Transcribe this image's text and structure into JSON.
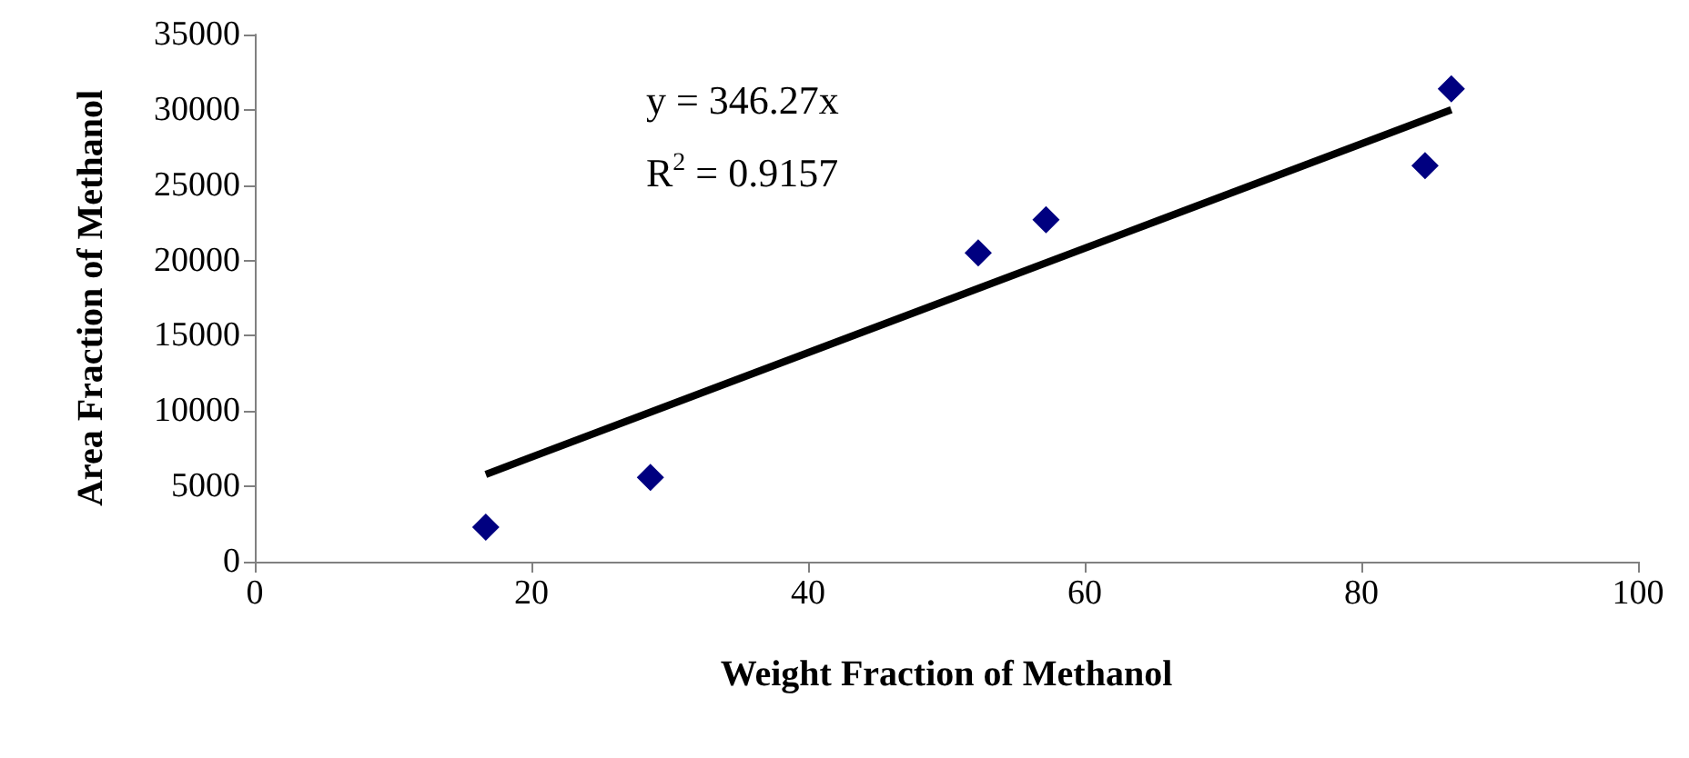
{
  "chart_data": {
    "type": "scatter",
    "xlabel": "Weight Fraction of Methanol",
    "ylabel": "Area Fraction of Methanol",
    "series": [
      {
        "color": "#000080",
        "x": [
          16.7,
          28.6,
          52.3,
          57.2,
          84.6,
          86.5
        ],
        "values": [
          2300,
          5600,
          20500,
          22700,
          26300,
          31400
        ]
      },
      {
        "type": "line",
        "color": "#000000",
        "x": [
          16.7,
          86.5
        ],
        "values": [
          5800,
          30000
        ],
        "marker": "none"
      }
    ],
    "marker": "diamond",
    "line_style": "solid",
    "grid": false,
    "xlim": [
      0,
      100
    ],
    "xticks": [
      0,
      20,
      40,
      60,
      80,
      100
    ],
    "ylim": [
      0,
      35000
    ],
    "yticks": [
      0,
      5000,
      10000,
      15000,
      20000,
      25000,
      30000,
      35000
    ],
    "annotations": [
      "y = 346.27x",
      "R$^{2}$ = 0.9157"
    ]
  }
}
